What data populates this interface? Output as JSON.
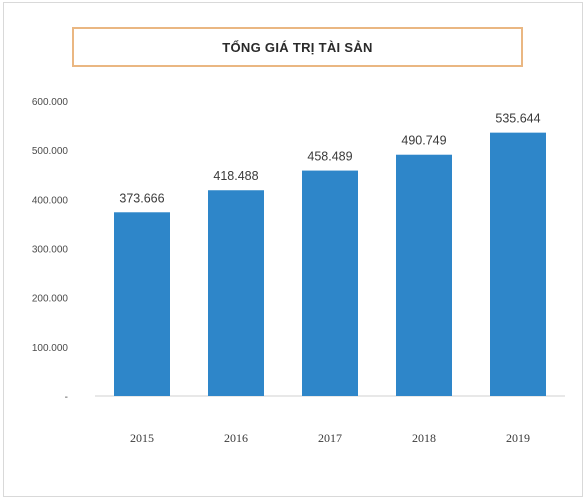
{
  "chart_data": {
    "type": "bar",
    "title": "TỔNG GIÁ TRỊ TÀI SẢN",
    "categories": [
      "2015",
      "2016",
      "2017",
      "2018",
      "2019"
    ],
    "values": [
      373666,
      418488,
      458489,
      490749,
      535644
    ],
    "value_labels": [
      "373.666",
      "418.488",
      "458.489",
      "490.749",
      "535.644"
    ],
    "yticks": [
      0,
      100000,
      200000,
      300000,
      400000,
      500000,
      600000
    ],
    "ytick_labels": [
      "-",
      "100.000",
      "200.000",
      "300.000",
      "400.000",
      "500.000",
      "600.000"
    ],
    "ylim": [
      0,
      600000
    ],
    "xlabel": "",
    "ylabel": "",
    "grid": false,
    "legend": "none",
    "bar_color": "#2e86c9"
  }
}
